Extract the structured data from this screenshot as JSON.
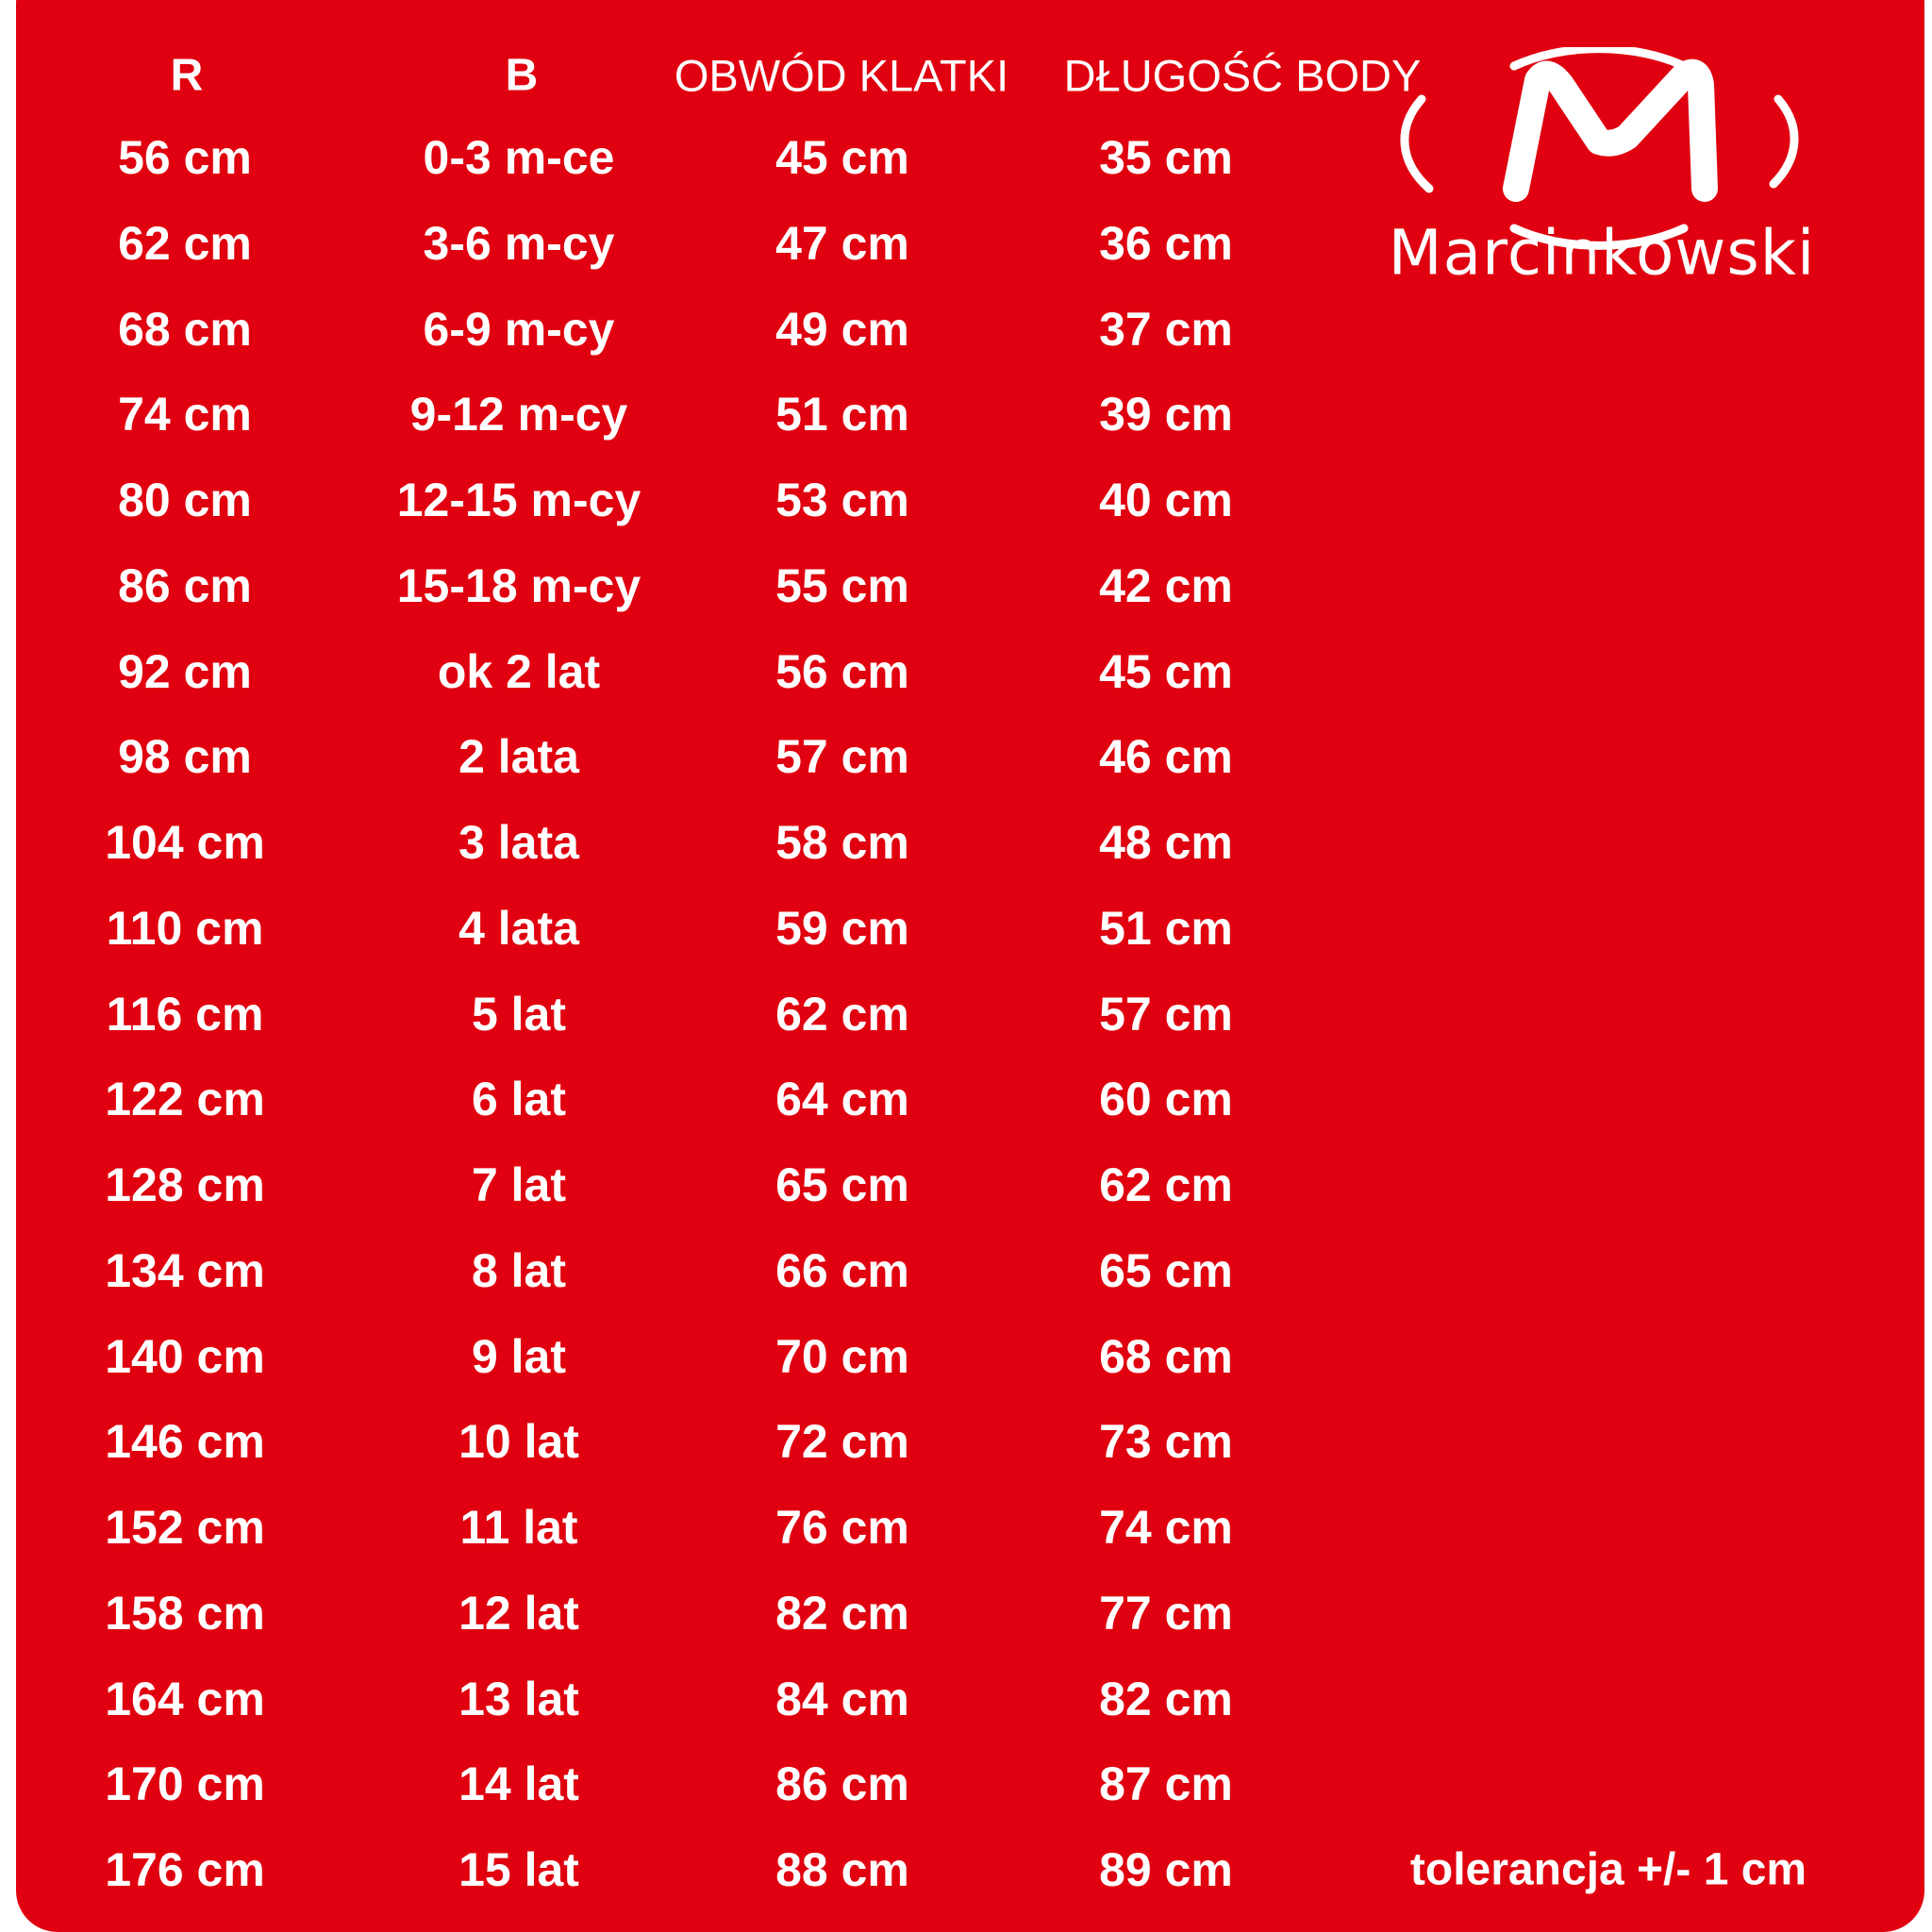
{
  "headers": {
    "r": "R",
    "b": "B",
    "chest": "OBWÓD KLATKI",
    "length": "DŁUGOŚĆ BODY"
  },
  "brand": {
    "name": "Marcinkowski",
    "logo_icon": "m-circle-logo"
  },
  "tolerance": "tolerancja +/- 1 cm",
  "colors": {
    "background": "#e0000f",
    "text": "#ffffff"
  },
  "rows": [
    [
      "56 cm",
      "0-3 m-ce",
      "45 cm",
      "35 cm"
    ],
    [
      "62 cm",
      "3-6 m-cy",
      "47 cm",
      "36 cm"
    ],
    [
      "68 cm",
      "6-9 m-cy",
      "49 cm",
      "37 cm"
    ],
    [
      "74 cm",
      "9-12 m-cy",
      "51 cm",
      "39 cm"
    ],
    [
      "80 cm",
      "12-15 m-cy",
      "53 cm",
      "40 cm"
    ],
    [
      "86 cm",
      "15-18 m-cy",
      "55 cm",
      "42 cm"
    ],
    [
      "92 cm",
      "ok 2 lat",
      "56 cm",
      "45 cm"
    ],
    [
      "98 cm",
      "2 lata",
      "57 cm",
      "46 cm"
    ],
    [
      "104 cm",
      "3 lata",
      "58 cm",
      "48 cm"
    ],
    [
      "110 cm",
      "4 lata",
      "59 cm",
      "51 cm"
    ],
    [
      "116 cm",
      "5 lat",
      "62 cm",
      "57 cm"
    ],
    [
      "122 cm",
      "6 lat",
      "64 cm",
      "60 cm"
    ],
    [
      "128 cm",
      "7 lat",
      "65 cm",
      "62 cm"
    ],
    [
      "134 cm",
      "8 lat",
      "66 cm",
      "65 cm"
    ],
    [
      "140 cm",
      "9 lat",
      "70 cm",
      "68 cm"
    ],
    [
      "146 cm",
      "10 lat",
      "72 cm",
      "73 cm"
    ],
    [
      "152 cm",
      "11 lat",
      "76 cm",
      "74 cm"
    ],
    [
      "158 cm",
      "12 lat",
      "82 cm",
      "77 cm"
    ],
    [
      "164 cm",
      "13 lat",
      "84 cm",
      "82 cm"
    ],
    [
      "170 cm",
      "14 lat",
      "86 cm",
      "87 cm"
    ],
    [
      "176 cm",
      "15 lat",
      "88 cm",
      "89 cm"
    ]
  ]
}
